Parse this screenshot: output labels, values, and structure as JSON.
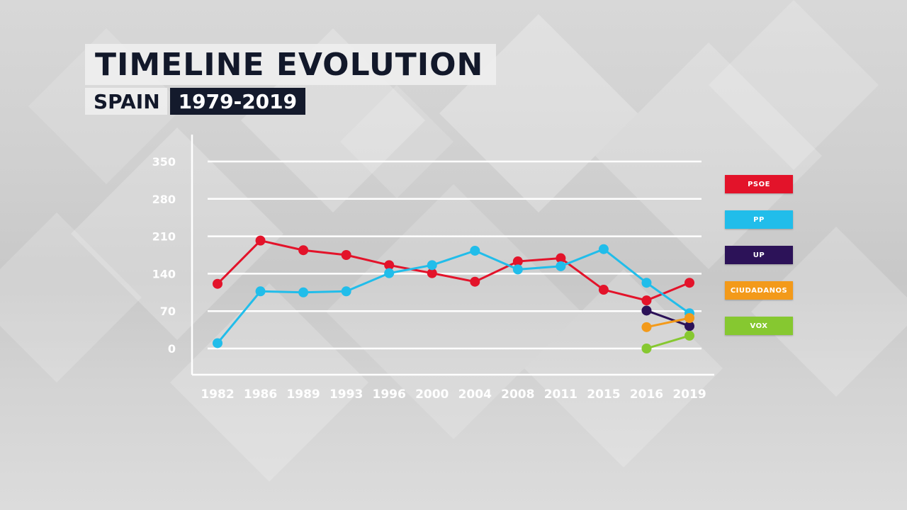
{
  "title": "TIMELINE EVOLUTION",
  "subtitle_country": "SPAIN",
  "subtitle_years": "1979-2019",
  "chart_data": {
    "type": "line",
    "x": [
      "1982",
      "1986",
      "1989",
      "1993",
      "1996",
      "2000",
      "2004",
      "2008",
      "2011",
      "2015",
      "2016",
      "2019"
    ],
    "yticks": [
      "350",
      "280",
      "210",
      "140",
      "70",
      "0"
    ],
    "ylim": [
      0,
      350
    ],
    "grid": true,
    "legend_position": "right",
    "series": [
      {
        "name": "PSOE",
        "color": "#e3132a",
        "values": [
          121,
          202,
          184,
          175,
          156,
          141,
          125,
          163,
          169,
          110,
          90,
          123
        ]
      },
      {
        "name": "PP",
        "color": "#21bdea",
        "values": [
          10,
          107,
          105,
          107,
          141,
          156,
          183,
          148,
          154,
          186,
          123,
          66
        ]
      },
      {
        "name": "UP",
        "color": "#2c1258",
        "values": [
          null,
          null,
          null,
          null,
          null,
          null,
          null,
          null,
          null,
          null,
          71,
          42
        ]
      },
      {
        "name": "CIUDADANOS",
        "color": "#f39a1a",
        "values": [
          null,
          null,
          null,
          null,
          null,
          null,
          null,
          null,
          null,
          null,
          40,
          57
        ]
      },
      {
        "name": "VOX",
        "color": "#86c830",
        "values": [
          null,
          null,
          null,
          null,
          null,
          null,
          null,
          null,
          null,
          null,
          0,
          24
        ]
      }
    ]
  }
}
